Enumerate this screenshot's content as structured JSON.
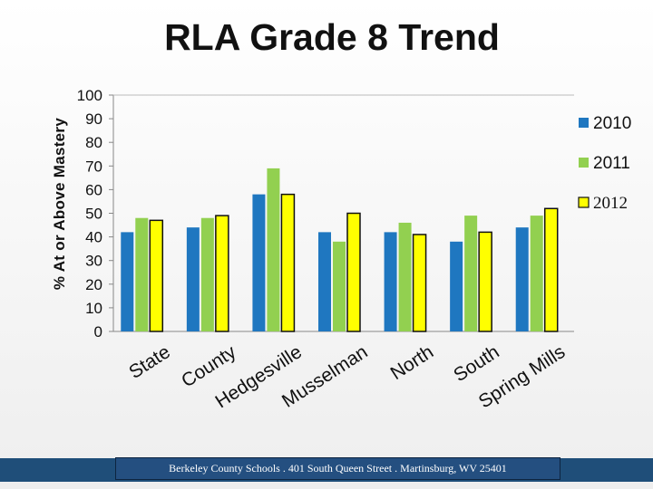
{
  "chart_data": {
    "type": "bar",
    "title": "RLA Grade 8 Trend",
    "xlabel": "",
    "ylabel": "% At or Above Mastery",
    "ylim": [
      0,
      100
    ],
    "yticks": [
      0,
      10,
      20,
      30,
      40,
      50,
      60,
      70,
      80,
      90,
      100
    ],
    "grid": false,
    "legend_position": "right",
    "categories": [
      "State",
      "County",
      "Hedgesville",
      "Musselman",
      "North",
      "South",
      "Spring Mills"
    ],
    "series": [
      {
        "name": "2010",
        "color": "#1f77c0",
        "values": [
          42,
          44,
          58,
          42,
          42,
          38,
          44
        ]
      },
      {
        "name": "2011",
        "color": "#92d050",
        "values": [
          48,
          48,
          69,
          38,
          46,
          49,
          49
        ]
      },
      {
        "name": "2012",
        "color": "#ffff00",
        "values": [
          47,
          49,
          58,
          50,
          41,
          42,
          52
        ]
      }
    ]
  },
  "footer": {
    "text": "Berkeley County Schools . 401 South Queen Street . Martinsburg, WV  25401"
  }
}
